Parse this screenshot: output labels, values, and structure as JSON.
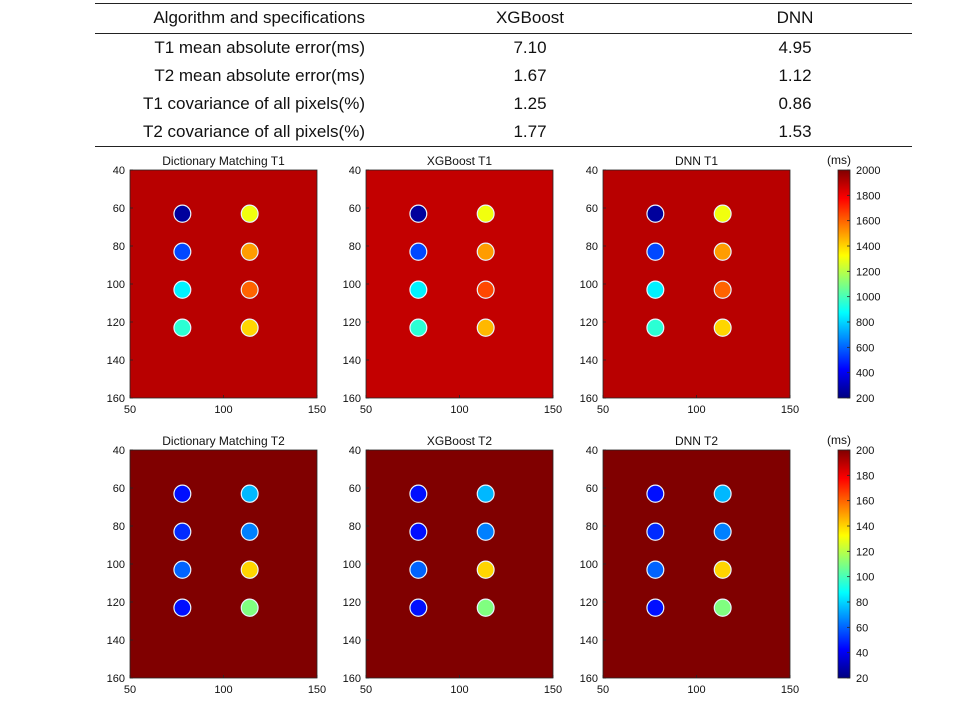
{
  "table": {
    "header": [
      "Algorithm and specifications",
      "XGBoost",
      "DNN"
    ],
    "rows": [
      [
        "T1 mean absolute error(ms)",
        "7.10",
        "4.95"
      ],
      [
        "T2 mean absolute error(ms)",
        "1.67",
        "1.12"
      ],
      [
        "T1 covariance of all pixels(%)",
        "1.25",
        "0.86"
      ],
      [
        "T2 covariance of all pixels(%)",
        "1.77",
        "1.53"
      ]
    ]
  },
  "chart_data": [
    {
      "type": "heatmap",
      "title": "Dictionary Matching T1",
      "xlim": [
        50,
        150
      ],
      "ylim": [
        160,
        40
      ],
      "xticks": [
        50,
        100,
        150
      ],
      "yticks": [
        40,
        60,
        80,
        100,
        120,
        140,
        160
      ],
      "background_value": 1900,
      "circles": [
        {
          "x": 78,
          "y": 63,
          "value": 250
        },
        {
          "x": 114,
          "y": 63,
          "value": 1300
        },
        {
          "x": 78,
          "y": 83,
          "value": 550
        },
        {
          "x": 114,
          "y": 83,
          "value": 1500
        },
        {
          "x": 78,
          "y": 103,
          "value": 850
        },
        {
          "x": 114,
          "y": 103,
          "value": 1600
        },
        {
          "x": 78,
          "y": 123,
          "value": 950
        },
        {
          "x": 114,
          "y": 123,
          "value": 1400
        }
      ]
    },
    {
      "type": "heatmap",
      "title": "XGBoost T1",
      "xlim": [
        50,
        150
      ],
      "ylim": [
        160,
        40
      ],
      "xticks": [
        50,
        100,
        150
      ],
      "yticks": [
        40,
        60,
        80,
        100,
        120,
        140,
        160
      ],
      "background_value": 1880,
      "circles": [
        {
          "x": 78,
          "y": 63,
          "value": 250
        },
        {
          "x": 114,
          "y": 63,
          "value": 1300
        },
        {
          "x": 78,
          "y": 83,
          "value": 550
        },
        {
          "x": 114,
          "y": 83,
          "value": 1500
        },
        {
          "x": 78,
          "y": 103,
          "value": 850
        },
        {
          "x": 114,
          "y": 103,
          "value": 1650
        },
        {
          "x": 78,
          "y": 123,
          "value": 950
        },
        {
          "x": 114,
          "y": 123,
          "value": 1450
        }
      ]
    },
    {
      "type": "heatmap",
      "title": "DNN T1",
      "xlim": [
        50,
        150
      ],
      "ylim": [
        160,
        40
      ],
      "xticks": [
        50,
        100,
        150
      ],
      "yticks": [
        40,
        60,
        80,
        100,
        120,
        140,
        160
      ],
      "background_value": 1900,
      "circles": [
        {
          "x": 78,
          "y": 63,
          "value": 250
        },
        {
          "x": 114,
          "y": 63,
          "value": 1300
        },
        {
          "x": 78,
          "y": 83,
          "value": 550
        },
        {
          "x": 114,
          "y": 83,
          "value": 1500
        },
        {
          "x": 78,
          "y": 103,
          "value": 850
        },
        {
          "x": 114,
          "y": 103,
          "value": 1600
        },
        {
          "x": 78,
          "y": 123,
          "value": 950
        },
        {
          "x": 114,
          "y": 123,
          "value": 1400
        }
      ]
    },
    {
      "type": "heatmap",
      "title": "Dictionary Matching T2",
      "xlim": [
        50,
        150
      ],
      "ylim": [
        160,
        40
      ],
      "xticks": [
        50,
        100,
        150
      ],
      "yticks": [
        40,
        60,
        80,
        100,
        120,
        140,
        160
      ],
      "background_value": 200,
      "circles": [
        {
          "x": 78,
          "y": 63,
          "value": 45
        },
        {
          "x": 114,
          "y": 63,
          "value": 75
        },
        {
          "x": 78,
          "y": 83,
          "value": 50
        },
        {
          "x": 114,
          "y": 83,
          "value": 65
        },
        {
          "x": 78,
          "y": 103,
          "value": 60
        },
        {
          "x": 114,
          "y": 103,
          "value": 140
        },
        {
          "x": 78,
          "y": 123,
          "value": 45
        },
        {
          "x": 114,
          "y": 123,
          "value": 110
        }
      ]
    },
    {
      "type": "heatmap",
      "title": "XGBoost T2",
      "xlim": [
        50,
        150
      ],
      "ylim": [
        160,
        40
      ],
      "xticks": [
        50,
        100,
        150
      ],
      "yticks": [
        40,
        60,
        80,
        100,
        120,
        140,
        160
      ],
      "background_value": 200,
      "circles": [
        {
          "x": 78,
          "y": 63,
          "value": 45
        },
        {
          "x": 114,
          "y": 63,
          "value": 75
        },
        {
          "x": 78,
          "y": 83,
          "value": 45
        },
        {
          "x": 114,
          "y": 83,
          "value": 65
        },
        {
          "x": 78,
          "y": 103,
          "value": 60
        },
        {
          "x": 114,
          "y": 103,
          "value": 140
        },
        {
          "x": 78,
          "y": 123,
          "value": 45
        },
        {
          "x": 114,
          "y": 123,
          "value": 110
        }
      ]
    },
    {
      "type": "heatmap",
      "title": "DNN T2",
      "xlim": [
        50,
        150
      ],
      "ylim": [
        160,
        40
      ],
      "xticks": [
        50,
        100,
        150
      ],
      "yticks": [
        40,
        60,
        80,
        100,
        120,
        140,
        160
      ],
      "background_value": 200,
      "circles": [
        {
          "x": 78,
          "y": 63,
          "value": 45
        },
        {
          "x": 114,
          "y": 63,
          "value": 75
        },
        {
          "x": 78,
          "y": 83,
          "value": 50
        },
        {
          "x": 114,
          "y": 83,
          "value": 65
        },
        {
          "x": 78,
          "y": 103,
          "value": 60
        },
        {
          "x": 114,
          "y": 103,
          "value": 140
        },
        {
          "x": 78,
          "y": 123,
          "value": 45
        },
        {
          "x": 114,
          "y": 123,
          "value": 110
        }
      ]
    }
  ],
  "colorbars": [
    {
      "unit": "(ms)",
      "range": [
        200,
        2000
      ],
      "ticks": [
        200,
        400,
        600,
        800,
        1000,
        1200,
        1400,
        1600,
        1800,
        2000
      ]
    },
    {
      "unit": "(ms)",
      "range": [
        20,
        200
      ],
      "ticks": [
        20,
        40,
        60,
        80,
        100,
        120,
        140,
        160,
        180,
        200
      ]
    }
  ],
  "colormap": "jet"
}
